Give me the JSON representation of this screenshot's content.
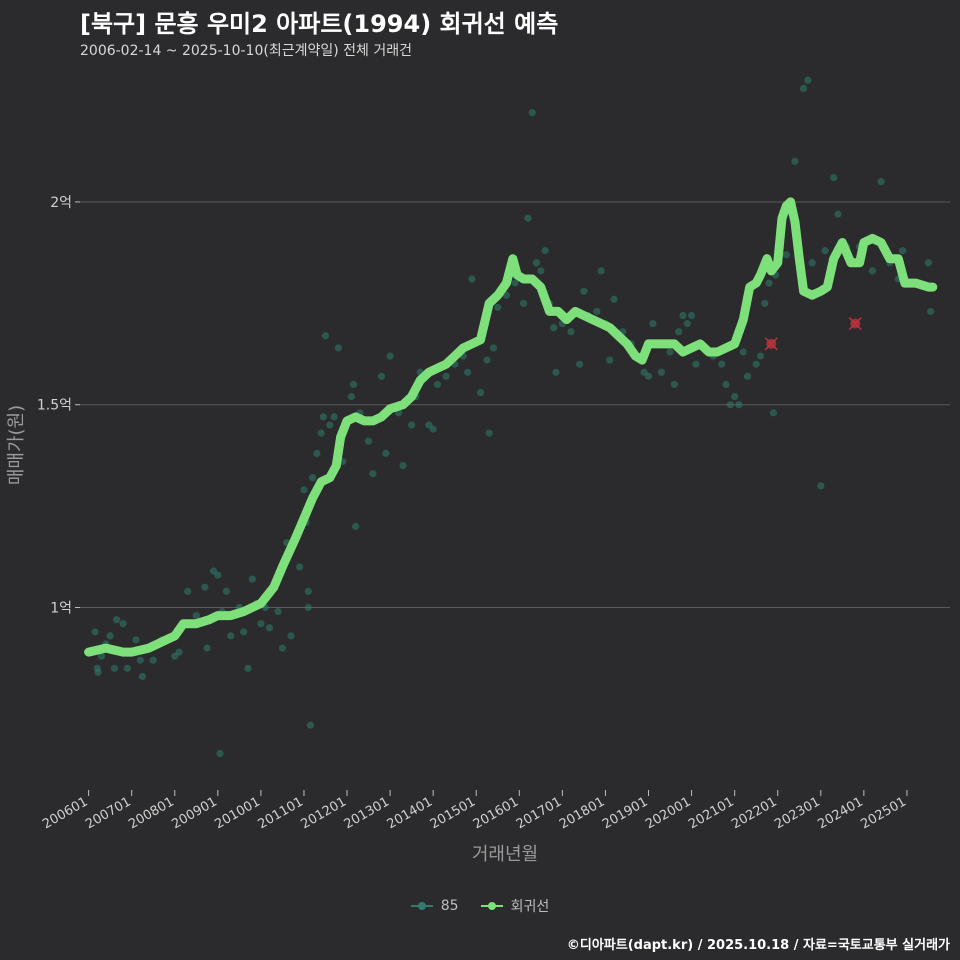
{
  "title": "[북구] 문흥 우미2 아파트(1994) 회귀선 예측",
  "subtitle": "2006-02-14 ~ 2025-10-10(최근계약일) 전체 거래건",
  "footer": "©디아파트(dapt.kr) / 2025.10.18 / 자료=국토교통부 실거래가",
  "colors": {
    "background": "#2b2b2d",
    "grid": "#5a5a5a",
    "scatter": "#2e7d6e",
    "regression": "#7ee07a",
    "outlier": "#c0333a"
  },
  "legend": [
    {
      "label": "85",
      "color": "#2e7d6e",
      "kind": "scatter"
    },
    {
      "label": "회귀선",
      "color": "#7ee07a",
      "kind": "line"
    }
  ],
  "chart_data": {
    "type": "scatter",
    "xlabel": "거래년월",
    "ylabel": "매매가(원)",
    "xlim": [
      2005.8,
      2026.0
    ],
    "ylim": [
      0.55,
      2.35
    ],
    "y_unit": "억",
    "y_ticks": [
      {
        "value": 1.0,
        "label": "1억"
      },
      {
        "value": 1.5,
        "label": "1.5억"
      },
      {
        "value": 2.0,
        "label": "2억"
      }
    ],
    "x_ticks": [
      {
        "value": 2006,
        "label": "200601"
      },
      {
        "value": 2007,
        "label": "200701"
      },
      {
        "value": 2008,
        "label": "200801"
      },
      {
        "value": 2009,
        "label": "200901"
      },
      {
        "value": 2010,
        "label": "201001"
      },
      {
        "value": 2011,
        "label": "201101"
      },
      {
        "value": 2012,
        "label": "201201"
      },
      {
        "value": 2013,
        "label": "201301"
      },
      {
        "value": 2014,
        "label": "201401"
      },
      {
        "value": 2015,
        "label": "201501"
      },
      {
        "value": 2016,
        "label": "201601"
      },
      {
        "value": 2017,
        "label": "201701"
      },
      {
        "value": 2018,
        "label": "201801"
      },
      {
        "value": 2019,
        "label": "201901"
      },
      {
        "value": 2020,
        "label": "202001"
      },
      {
        "value": 2021,
        "label": "202101"
      },
      {
        "value": 2022,
        "label": "202201"
      },
      {
        "value": 2023,
        "label": "202301"
      },
      {
        "value": 2024,
        "label": "202401"
      },
      {
        "value": 2025,
        "label": "202501"
      }
    ],
    "series": [
      {
        "name": "85",
        "kind": "scatter",
        "points": [
          [
            2006.1,
            0.89
          ],
          [
            2006.15,
            0.94
          ],
          [
            2006.2,
            0.85
          ],
          [
            2006.22,
            0.84
          ],
          [
            2006.3,
            0.88
          ],
          [
            2006.4,
            0.91
          ],
          [
            2006.5,
            0.93
          ],
          [
            2006.6,
            0.85
          ],
          [
            2006.65,
            0.97
          ],
          [
            2006.8,
            0.96
          ],
          [
            2006.9,
            0.85
          ],
          [
            2007.0,
            0.89
          ],
          [
            2007.1,
            0.92
          ],
          [
            2007.2,
            0.87
          ],
          [
            2007.25,
            0.83
          ],
          [
            2007.5,
            0.87
          ],
          [
            2007.7,
            0.92
          ],
          [
            2008.0,
            0.88
          ],
          [
            2008.1,
            0.89
          ],
          [
            2008.2,
            0.96
          ],
          [
            2008.3,
            1.04
          ],
          [
            2008.5,
            0.98
          ],
          [
            2008.7,
            1.05
          ],
          [
            2008.75,
            0.9
          ],
          [
            2008.9,
            1.09
          ],
          [
            2009.0,
            1.08
          ],
          [
            2009.05,
            0.64
          ],
          [
            2009.1,
            0.99
          ],
          [
            2009.2,
            1.04
          ],
          [
            2009.3,
            0.93
          ],
          [
            2009.5,
            1.0
          ],
          [
            2009.6,
            0.94
          ],
          [
            2009.7,
            0.85
          ],
          [
            2009.8,
            1.07
          ],
          [
            2009.9,
            1.01
          ],
          [
            2010.0,
            0.96
          ],
          [
            2010.1,
            1.0
          ],
          [
            2010.2,
            0.95
          ],
          [
            2010.4,
            0.99
          ],
          [
            2010.5,
            0.9
          ],
          [
            2010.6,
            1.16
          ],
          [
            2010.7,
            0.93
          ],
          [
            2010.9,
            1.1
          ],
          [
            2011.0,
            1.29
          ],
          [
            2011.05,
            1.21
          ],
          [
            2011.1,
            1.04
          ],
          [
            2011.1,
            1.0
          ],
          [
            2011.15,
            0.71
          ],
          [
            2011.2,
            1.32
          ],
          [
            2011.3,
            1.38
          ],
          [
            2011.4,
            1.43
          ],
          [
            2011.45,
            1.47
          ],
          [
            2011.5,
            1.67
          ],
          [
            2011.6,
            1.45
          ],
          [
            2011.7,
            1.47
          ],
          [
            2011.8,
            1.64
          ],
          [
            2011.9,
            1.36
          ],
          [
            2012.1,
            1.52
          ],
          [
            2012.15,
            1.55
          ],
          [
            2012.2,
            1.2
          ],
          [
            2012.3,
            1.48
          ],
          [
            2012.5,
            1.41
          ],
          [
            2012.6,
            1.33
          ],
          [
            2012.8,
            1.57
          ],
          [
            2012.9,
            1.38
          ],
          [
            2013.0,
            1.62
          ],
          [
            2013.2,
            1.48
          ],
          [
            2013.3,
            1.35
          ],
          [
            2013.5,
            1.45
          ],
          [
            2013.6,
            1.52
          ],
          [
            2013.7,
            1.58
          ],
          [
            2013.8,
            1.57
          ],
          [
            2013.9,
            1.45
          ],
          [
            2014.0,
            1.44
          ],
          [
            2014.1,
            1.55
          ],
          [
            2014.3,
            1.57
          ],
          [
            2014.5,
            1.6
          ],
          [
            2014.7,
            1.62
          ],
          [
            2014.8,
            1.58
          ],
          [
            2014.9,
            1.81
          ],
          [
            2015.1,
            1.53
          ],
          [
            2015.25,
            1.61
          ],
          [
            2015.3,
            1.43
          ],
          [
            2015.4,
            1.64
          ],
          [
            2015.5,
            1.74
          ],
          [
            2015.7,
            1.77
          ],
          [
            2015.9,
            1.8
          ],
          [
            2016.0,
            1.82
          ],
          [
            2016.1,
            1.75
          ],
          [
            2016.2,
            1.96
          ],
          [
            2016.3,
            2.22
          ],
          [
            2016.4,
            1.85
          ],
          [
            2016.5,
            1.83
          ],
          [
            2016.6,
            1.88
          ],
          [
            2016.7,
            1.75
          ],
          [
            2016.8,
            1.69
          ],
          [
            2016.85,
            1.58
          ],
          [
            2017.0,
            1.7
          ],
          [
            2017.2,
            1.68
          ],
          [
            2017.4,
            1.6
          ],
          [
            2017.5,
            1.78
          ],
          [
            2017.6,
            1.72
          ],
          [
            2017.8,
            1.73
          ],
          [
            2017.9,
            1.83
          ],
          [
            2018.0,
            1.7
          ],
          [
            2018.1,
            1.61
          ],
          [
            2018.2,
            1.76
          ],
          [
            2018.4,
            1.68
          ],
          [
            2018.6,
            1.65
          ],
          [
            2018.8,
            1.62
          ],
          [
            2018.9,
            1.58
          ],
          [
            2019.0,
            1.57
          ],
          [
            2019.1,
            1.7
          ],
          [
            2019.3,
            1.58
          ],
          [
            2019.4,
            1.65
          ],
          [
            2019.5,
            1.63
          ],
          [
            2019.6,
            1.55
          ],
          [
            2019.7,
            1.68
          ],
          [
            2019.8,
            1.72
          ],
          [
            2019.9,
            1.7
          ],
          [
            2020.0,
            1.72
          ],
          [
            2020.1,
            1.6
          ],
          [
            2020.3,
            1.64
          ],
          [
            2020.5,
            1.62
          ],
          [
            2020.7,
            1.6
          ],
          [
            2020.8,
            1.55
          ],
          [
            2020.9,
            1.5
          ],
          [
            2021.0,
            1.52
          ],
          [
            2021.1,
            1.5
          ],
          [
            2021.2,
            1.63
          ],
          [
            2021.3,
            1.57
          ],
          [
            2021.5,
            1.6
          ],
          [
            2021.6,
            1.62
          ],
          [
            2021.7,
            1.75
          ],
          [
            2021.8,
            1.8
          ],
          [
            2021.9,
            1.48
          ],
          [
            2021.95,
            1.82
          ],
          [
            2022.2,
            1.87
          ],
          [
            2022.4,
            2.1
          ],
          [
            2022.5,
            1.88
          ],
          [
            2022.6,
            2.28
          ],
          [
            2022.7,
            2.3
          ],
          [
            2022.8,
            1.85
          ],
          [
            2023.0,
            1.3
          ],
          [
            2023.1,
            1.88
          ],
          [
            2023.3,
            2.06
          ],
          [
            2023.4,
            1.97
          ],
          [
            2023.6,
            1.89
          ],
          [
            2023.9,
            1.89
          ],
          [
            2024.2,
            1.83
          ],
          [
            2024.4,
            2.05
          ],
          [
            2024.6,
            1.85
          ],
          [
            2024.8,
            1.81
          ],
          [
            2024.9,
            1.88
          ],
          [
            2025.2,
            1.8
          ],
          [
            2025.5,
            1.85
          ],
          [
            2025.55,
            1.73
          ]
        ]
      },
      {
        "name": "회귀선",
        "kind": "line",
        "points": [
          [
            2006.0,
            0.89
          ],
          [
            2006.4,
            0.9
          ],
          [
            2006.8,
            0.89
          ],
          [
            2007.0,
            0.89
          ],
          [
            2007.4,
            0.9
          ],
          [
            2007.8,
            0.92
          ],
          [
            2008.0,
            0.93
          ],
          [
            2008.2,
            0.96
          ],
          [
            2008.5,
            0.96
          ],
          [
            2008.8,
            0.97
          ],
          [
            2009.0,
            0.98
          ],
          [
            2009.3,
            0.98
          ],
          [
            2009.6,
            0.99
          ],
          [
            2009.8,
            1.0
          ],
          [
            2010.0,
            1.01
          ],
          [
            2010.3,
            1.05
          ],
          [
            2010.5,
            1.1
          ],
          [
            2010.8,
            1.17
          ],
          [
            2011.0,
            1.22
          ],
          [
            2011.2,
            1.27
          ],
          [
            2011.4,
            1.31
          ],
          [
            2011.6,
            1.32
          ],
          [
            2011.75,
            1.35
          ],
          [
            2011.85,
            1.42
          ],
          [
            2012.0,
            1.46
          ],
          [
            2012.2,
            1.47
          ],
          [
            2012.4,
            1.46
          ],
          [
            2012.6,
            1.46
          ],
          [
            2012.8,
            1.47
          ],
          [
            2013.0,
            1.49
          ],
          [
            2013.3,
            1.5
          ],
          [
            2013.5,
            1.52
          ],
          [
            2013.7,
            1.56
          ],
          [
            2013.9,
            1.58
          ],
          [
            2014.1,
            1.59
          ],
          [
            2014.3,
            1.6
          ],
          [
            2014.5,
            1.62
          ],
          [
            2014.7,
            1.64
          ],
          [
            2014.9,
            1.65
          ],
          [
            2015.1,
            1.66
          ],
          [
            2015.3,
            1.75
          ],
          [
            2015.5,
            1.77
          ],
          [
            2015.7,
            1.8
          ],
          [
            2015.85,
            1.86
          ],
          [
            2015.95,
            1.82
          ],
          [
            2016.1,
            1.81
          ],
          [
            2016.3,
            1.81
          ],
          [
            2016.5,
            1.79
          ],
          [
            2016.7,
            1.73
          ],
          [
            2016.9,
            1.73
          ],
          [
            2017.1,
            1.71
          ],
          [
            2017.3,
            1.73
          ],
          [
            2017.5,
            1.72
          ],
          [
            2017.7,
            1.71
          ],
          [
            2017.9,
            1.7
          ],
          [
            2018.1,
            1.69
          ],
          [
            2018.3,
            1.67
          ],
          [
            2018.5,
            1.65
          ],
          [
            2018.7,
            1.62
          ],
          [
            2018.85,
            1.61
          ],
          [
            2019.0,
            1.65
          ],
          [
            2019.2,
            1.65
          ],
          [
            2019.4,
            1.65
          ],
          [
            2019.6,
            1.65
          ],
          [
            2019.8,
            1.63
          ],
          [
            2020.0,
            1.64
          ],
          [
            2020.2,
            1.65
          ],
          [
            2020.4,
            1.63
          ],
          [
            2020.6,
            1.63
          ],
          [
            2020.8,
            1.64
          ],
          [
            2021.0,
            1.65
          ],
          [
            2021.2,
            1.71
          ],
          [
            2021.35,
            1.79
          ],
          [
            2021.5,
            1.8
          ],
          [
            2021.6,
            1.82
          ],
          [
            2021.75,
            1.86
          ],
          [
            2021.85,
            1.83
          ],
          [
            2022.0,
            1.85
          ],
          [
            2022.1,
            1.96
          ],
          [
            2022.2,
            1.99
          ],
          [
            2022.3,
            2.0
          ],
          [
            2022.4,
            1.95
          ],
          [
            2022.5,
            1.86
          ],
          [
            2022.6,
            1.78
          ],
          [
            2022.8,
            1.77
          ],
          [
            2023.0,
            1.78
          ],
          [
            2023.15,
            1.79
          ],
          [
            2023.3,
            1.86
          ],
          [
            2023.5,
            1.9
          ],
          [
            2023.7,
            1.85
          ],
          [
            2023.9,
            1.85
          ],
          [
            2024.0,
            1.9
          ],
          [
            2024.2,
            1.91
          ],
          [
            2024.4,
            1.9
          ],
          [
            2024.6,
            1.86
          ],
          [
            2024.8,
            1.86
          ],
          [
            2024.95,
            1.8
          ],
          [
            2025.2,
            1.8
          ],
          [
            2025.5,
            1.79
          ],
          [
            2025.6,
            1.79
          ]
        ]
      }
    ],
    "outliers": [
      [
        2021.85,
        1.65
      ],
      [
        2023.8,
        1.7
      ]
    ]
  }
}
